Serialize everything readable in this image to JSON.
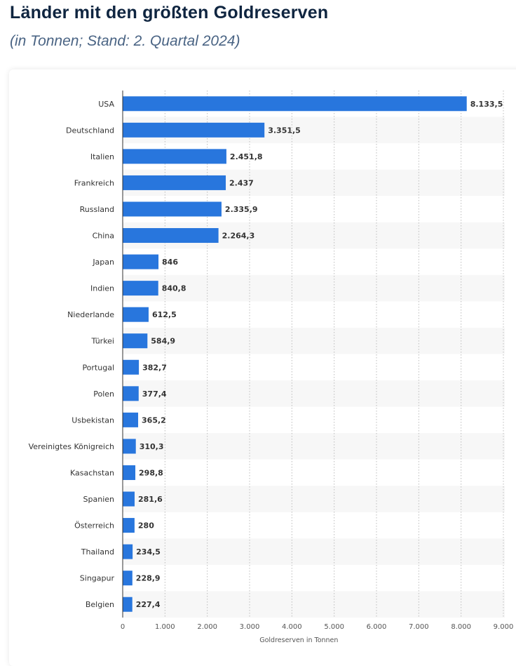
{
  "header": {
    "title": "Länder mit den größten Goldreserven",
    "subtitle": "(in Tonnen; Stand: 2. Quartal 2024)"
  },
  "chart_data": {
    "type": "bar",
    "orientation": "horizontal",
    "categories": [
      "USA",
      "Deutschland",
      "Italien",
      "Frankreich",
      "Russland",
      "China",
      "Japan",
      "Indien",
      "Niederlande",
      "Türkei",
      "Portugal",
      "Polen",
      "Usbekistan",
      "Vereinigtes Königreich",
      "Kasachstan",
      "Spanien",
      "Österreich",
      "Thailand",
      "Singapur",
      "Belgien"
    ],
    "values": [
      8133.5,
      3351.5,
      2451.8,
      2437,
      2335.9,
      2264.3,
      846,
      840.8,
      612.5,
      584.9,
      382.7,
      377.4,
      365.2,
      310.3,
      298.8,
      281.6,
      280,
      234.5,
      228.9,
      227.4
    ],
    "value_labels": [
      "8.133,5",
      "3.351,5",
      "2.451,8",
      "2.437",
      "2.335,9",
      "2.264,3",
      "846",
      "840,8",
      "612,5",
      "584,9",
      "382,7",
      "377,4",
      "365,2",
      "310,3",
      "298,8",
      "281,6",
      "280",
      "234,5",
      "228,9",
      "227,4"
    ],
    "xlabel": "Goldreserven in Tonnen",
    "xlim": [
      0,
      9000
    ],
    "ticks": [
      0,
      1000,
      2000,
      3000,
      4000,
      5000,
      6000,
      7000,
      8000,
      9000
    ],
    "tick_labels": [
      "0",
      "1.000",
      "2.000",
      "3.000",
      "4.000",
      "5.000",
      "6.000",
      "7.000",
      "8.000",
      "9.000"
    ],
    "grid": "vertical dotted",
    "legend": "none"
  },
  "colors": {
    "bar": "#2876dd",
    "band": "#f7f7f7",
    "grid": "#bcbcbc",
    "axis": "#333333"
  }
}
